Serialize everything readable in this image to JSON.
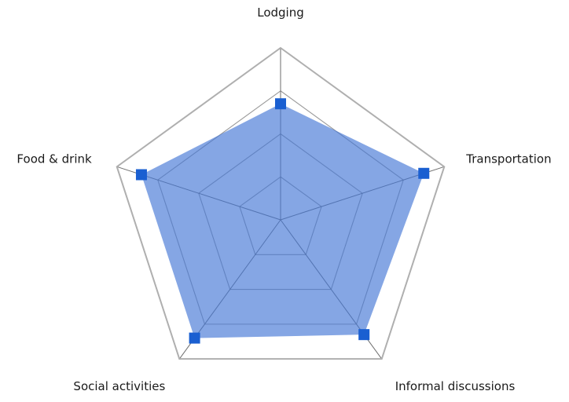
{
  "chart_data": {
    "type": "radar",
    "title": "",
    "categories": [
      "Lodging",
      "Transportation",
      "Informal discussions",
      "Social activities",
      "Food & drink"
    ],
    "values": [
      2.7,
      3.5,
      3.3,
      3.4,
      3.4
    ],
    "axis": {
      "min": 0,
      "max": 4,
      "grid_levels": [
        1,
        2,
        3,
        4
      ],
      "tick_labels_visible": false
    },
    "layout_hints": {
      "start_angle_deg": 90,
      "direction": "clockwise",
      "grid": "on",
      "legend": "none",
      "background": "#ffffff"
    },
    "style": {
      "fill_color": "#4377D6",
      "fill_opacity": 0.65,
      "marker_color": "#1A5FD1",
      "marker_shape": "square",
      "ring_color": "#9A9A9A",
      "spoke_color": "#6E6E6E",
      "frame_color": "#AFAFAF",
      "label_color": "#1A1A1A"
    }
  }
}
